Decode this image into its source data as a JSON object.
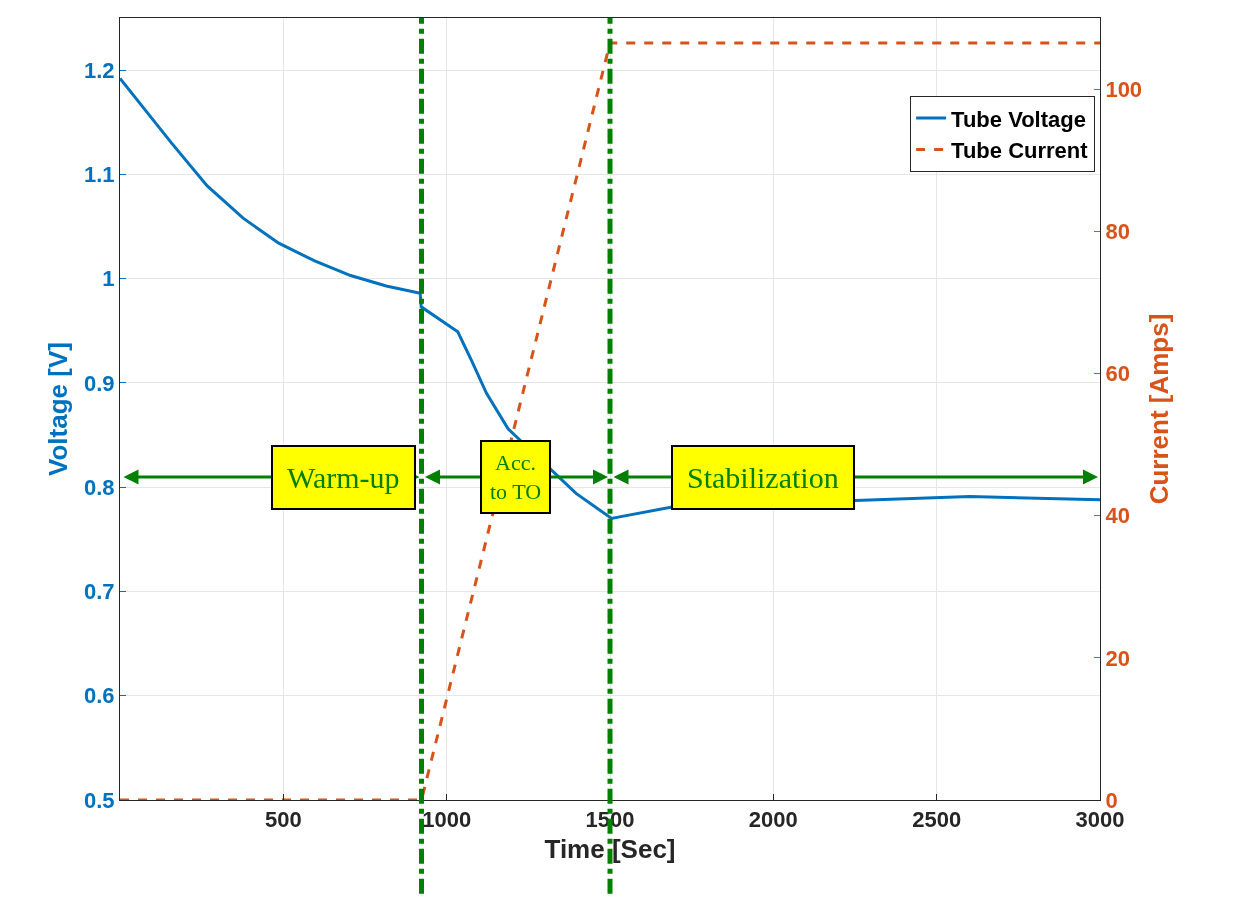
{
  "chart_data": {
    "type": "line",
    "xlabel": "Time [Sec]",
    "ylabel": "Voltage [V]",
    "y2label": "Current [Amps]",
    "xlim": [
      0,
      3000
    ],
    "xticks": [
      500,
      1000,
      1500,
      2000,
      2500,
      3000
    ],
    "ylim": [
      0.5,
      1.25
    ],
    "yticks": [
      0.5,
      0.6,
      0.7,
      0.8,
      0.9,
      1,
      1.1,
      1.2
    ],
    "y2lim": [
      0,
      110
    ],
    "y2ticks": [
      0,
      20,
      40,
      60,
      80,
      100
    ],
    "grid": true,
    "legend": "top right",
    "series": [
      {
        "name": "Tube Voltage",
        "color": "#0072bd",
        "line_style": "solid",
        "x": [
          0,
          158,
          267,
          377,
          486,
          596,
          706,
          815,
          919,
          922,
          1034,
          1077,
          1122,
          1188,
          1396,
          1505,
          1537,
          1690,
          2601,
          3000
        ],
        "values": [
          1.192,
          1.13,
          1.089,
          1.058,
          1.034,
          1.017,
          1.003,
          0.993,
          0.986,
          0.973,
          0.949,
          0.921,
          0.89,
          0.856,
          0.794,
          0.77,
          0.772,
          0.781,
          0.791,
          0.788
        ]
      },
      {
        "name": "Tube Current",
        "color": "#d95319",
        "line_style": "dashed",
        "axis": "y2",
        "x": [
          0,
          923,
          1500,
          3000
        ],
        "values": [
          0,
          0,
          106.5,
          106.5
        ]
      }
    ],
    "ref_lines": [
      {
        "axis": "x",
        "value": 923,
        "color": "#008000",
        "line_style": "dashdot"
      },
      {
        "axis": "x",
        "value": 1500,
        "color": "#008000",
        "line_style": "dashdot"
      }
    ],
    "annotations": [
      "Warm-up",
      "Acc.\nto TO",
      "Stabilization"
    ]
  }
}
